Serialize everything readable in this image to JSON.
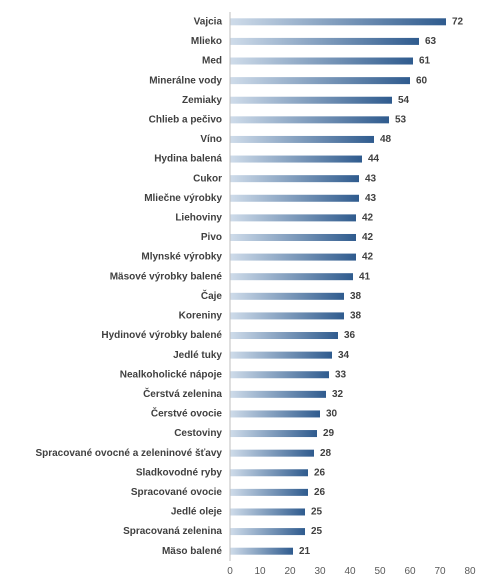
{
  "chart_data": {
    "type": "bar",
    "orientation": "horizontal",
    "title": "",
    "xlabel": "",
    "ylabel": "",
    "categories": [
      "Vajcia",
      "Mlieko",
      "Med",
      "Minerálne vody",
      "Zemiaky",
      "Chlieb a pečivo",
      "Víno",
      "Hydina balená",
      "Cukor",
      "Mliečne výrobky",
      "Liehoviny",
      "Pivo",
      "Mlynské výrobky",
      "Mäsové výrobky balené",
      "Čaje",
      "Koreniny",
      "Hydinové výrobky balené",
      "Jedlé tuky",
      "Nealkoholické nápoje",
      "Čerstvá zelenina",
      "Čerstvé ovocie",
      "Cestoviny",
      "Spracované ovocné a zeleninové šťavy",
      "Sladkovodné ryby",
      "Spracované ovocie",
      "Jedlé oleje",
      "Spracovaná zelenina",
      "Mäso balené"
    ],
    "values": [
      72,
      63,
      61,
      60,
      54,
      53,
      48,
      44,
      43,
      43,
      42,
      42,
      42,
      41,
      38,
      38,
      36,
      34,
      33,
      32,
      30,
      29,
      28,
      26,
      26,
      25,
      25,
      21
    ],
    "xlim": [
      0,
      80
    ],
    "xticks": [
      0,
      10,
      20,
      30,
      40,
      50,
      60,
      70,
      80
    ],
    "data_labels": true,
    "grid": false,
    "legend": "none",
    "bar_color_dark": "#2f5b8e",
    "bar_color_light": "#cfdcea",
    "axis_color": "#bfbfbf",
    "text_color": "#404040"
  }
}
